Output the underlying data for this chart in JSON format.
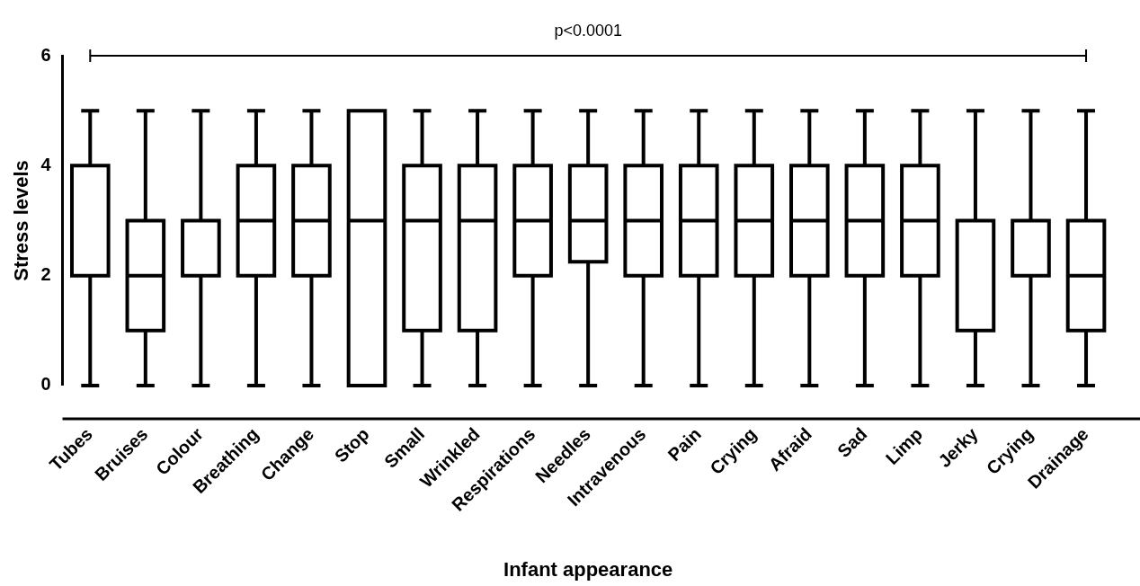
{
  "chart_data": {
    "type": "box",
    "xlabel": "Infant appearance",
    "ylabel": "Stress levels",
    "categories": [
      "Tubes",
      "Bruises",
      "Colour",
      "Breathing",
      "Change",
      "Stop",
      "Small",
      "Wrinkled",
      "Respirations",
      "Needles",
      "Intravenous",
      "Pain",
      "Crying",
      "Afraid",
      "Sad",
      "Limp",
      "Jerky",
      "Crying",
      "Drainage"
    ],
    "color": "#000000",
    "boxes": [
      {
        "low": 0,
        "q1": 2,
        "median": 2,
        "q3": 4,
        "high": 5
      },
      {
        "low": 0,
        "q1": 1,
        "median": 2,
        "q3": 3,
        "high": 5
      },
      {
        "low": 0,
        "q1": 2,
        "median": 2,
        "q3": 3,
        "high": 5
      },
      {
        "low": 0,
        "q1": 2,
        "median": 3,
        "q3": 4,
        "high": 5
      },
      {
        "low": 0,
        "q1": 2,
        "median": 3,
        "q3": 4,
        "high": 5
      },
      {
        "low": 0,
        "q1": 0,
        "median": 3,
        "q3": 5,
        "high": 5
      },
      {
        "low": 0,
        "q1": 1,
        "median": 3,
        "q3": 4,
        "high": 5
      },
      {
        "low": 0,
        "q1": 1,
        "median": 3,
        "q3": 4,
        "high": 5
      },
      {
        "low": 0,
        "q1": 2,
        "median": 3,
        "q3": 4,
        "high": 5
      },
      {
        "low": 0,
        "q1": 2.25,
        "median": 3,
        "q3": 4,
        "high": 5
      },
      {
        "low": 0,
        "q1": 2,
        "median": 3,
        "q3": 4,
        "high": 5
      },
      {
        "low": 0,
        "q1": 2,
        "median": 3,
        "q3": 4,
        "high": 5
      },
      {
        "low": 0,
        "q1": 2,
        "median": 3,
        "q3": 4,
        "high": 5
      },
      {
        "low": 0,
        "q1": 2,
        "median": 3,
        "q3": 4,
        "high": 5
      },
      {
        "low": 0,
        "q1": 2,
        "median": 3,
        "q3": 4,
        "high": 5
      },
      {
        "low": 0,
        "q1": 2,
        "median": 3,
        "q3": 4,
        "high": 5
      },
      {
        "low": 0,
        "q1": 1,
        "median": 3,
        "q3": 3,
        "high": 5
      },
      {
        "low": 0,
        "q1": 2,
        "median": 3,
        "q3": 3,
        "high": 5
      },
      {
        "low": 0,
        "q1": 1,
        "median": 2,
        "q3": 3,
        "high": 5
      }
    ],
    "ylim": [
      0,
      6
    ],
    "yticks": [
      0,
      2,
      4,
      6
    ],
    "grid": false,
    "legend": false,
    "annotations": [
      "p<0.0001"
    ]
  }
}
